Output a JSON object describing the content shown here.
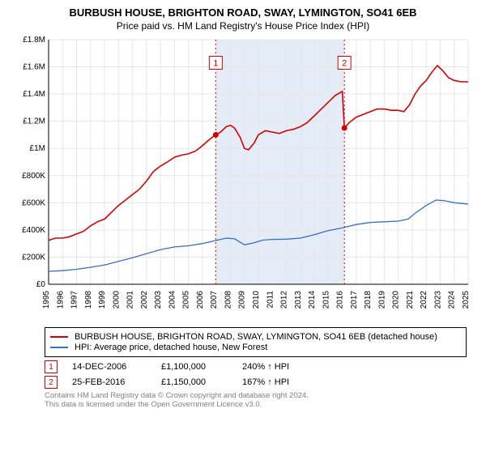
{
  "chart": {
    "type": "line",
    "title": "BURBUSH HOUSE, BRIGHTON ROAD, SWAY, LYMINGTON, SO41 6EB",
    "subtitle": "Price paid vs. HM Land Registry's House Price Index (HPI)",
    "background_color": "#ffffff",
    "plot_background": "#ffffff",
    "shade_color": "#e3ecf7",
    "grid_color": "#e6e6e6",
    "axis_color": "#000000",
    "title_fontsize": 13,
    "subtitle_fontsize": 12,
    "axis_label_fontsize": 10,
    "x": {
      "min": 1995,
      "max": 2025,
      "ticks": [
        1995,
        1996,
        1997,
        1998,
        1999,
        2000,
        2001,
        2002,
        2003,
        2004,
        2005,
        2006,
        2007,
        2008,
        2009,
        2010,
        2011,
        2012,
        2013,
        2014,
        2015,
        2016,
        2017,
        2018,
        2019,
        2020,
        2021,
        2022,
        2023,
        2024,
        2025
      ]
    },
    "y": {
      "min": 0,
      "max": 1800000,
      "ticks": [
        0,
        200000,
        400000,
        600000,
        800000,
        1000000,
        1200000,
        1400000,
        1600000,
        1800000
      ],
      "tick_labels": [
        "£0",
        "£200K",
        "£400K",
        "£600K",
        "£800K",
        "£1M",
        "£1.2M",
        "£1.4M",
        "£1.6M",
        "£1.8M"
      ]
    },
    "series": [
      {
        "name": "BURBUSH HOUSE, BRIGHTON ROAD, SWAY, LYMINGTON, SO41 6EB (detached house)",
        "color": "#d60000",
        "line_width": 1.6,
        "data": [
          [
            1995.0,
            323000
          ],
          [
            1995.5,
            340000
          ],
          [
            1996.0,
            340000
          ],
          [
            1996.5,
            350000
          ],
          [
            1997.0,
            370000
          ],
          [
            1997.5,
            390000
          ],
          [
            1998.0,
            430000
          ],
          [
            1998.5,
            460000
          ],
          [
            1999.0,
            480000
          ],
          [
            1999.5,
            530000
          ],
          [
            2000.0,
            580000
          ],
          [
            2000.5,
            620000
          ],
          [
            2001.0,
            660000
          ],
          [
            2001.5,
            700000
          ],
          [
            2002.0,
            760000
          ],
          [
            2002.5,
            830000
          ],
          [
            2003.0,
            870000
          ],
          [
            2003.5,
            900000
          ],
          [
            2004.0,
            935000
          ],
          [
            2004.5,
            950000
          ],
          [
            2005.0,
            960000
          ],
          [
            2005.5,
            980000
          ],
          [
            2006.0,
            1020000
          ],
          [
            2006.5,
            1065000
          ],
          [
            2006.95,
            1100000
          ],
          [
            2007.3,
            1120000
          ],
          [
            2007.7,
            1160000
          ],
          [
            2008.0,
            1170000
          ],
          [
            2008.3,
            1150000
          ],
          [
            2008.7,
            1080000
          ],
          [
            2009.0,
            1000000
          ],
          [
            2009.3,
            990000
          ],
          [
            2009.7,
            1040000
          ],
          [
            2010.0,
            1100000
          ],
          [
            2010.5,
            1130000
          ],
          [
            2011.0,
            1120000
          ],
          [
            2011.5,
            1110000
          ],
          [
            2012.0,
            1130000
          ],
          [
            2012.5,
            1140000
          ],
          [
            2013.0,
            1160000
          ],
          [
            2013.5,
            1190000
          ],
          [
            2014.0,
            1240000
          ],
          [
            2014.5,
            1290000
          ],
          [
            2015.0,
            1340000
          ],
          [
            2015.5,
            1390000
          ],
          [
            2016.0,
            1420000
          ],
          [
            2016.15,
            1150000
          ],
          [
            2016.5,
            1190000
          ],
          [
            2017.0,
            1230000
          ],
          [
            2017.5,
            1250000
          ],
          [
            2018.0,
            1270000
          ],
          [
            2018.5,
            1290000
          ],
          [
            2019.0,
            1290000
          ],
          [
            2019.5,
            1280000
          ],
          [
            2020.0,
            1280000
          ],
          [
            2020.4,
            1270000
          ],
          [
            2020.8,
            1320000
          ],
          [
            2021.2,
            1400000
          ],
          [
            2021.6,
            1460000
          ],
          [
            2022.0,
            1500000
          ],
          [
            2022.4,
            1560000
          ],
          [
            2022.8,
            1610000
          ],
          [
            2023.2,
            1570000
          ],
          [
            2023.6,
            1520000
          ],
          [
            2024.0,
            1500000
          ],
          [
            2024.5,
            1490000
          ],
          [
            2025.0,
            1490000
          ]
        ]
      },
      {
        "name": "HPI: Average price, detached house, New Forest",
        "color": "#3a6fbf",
        "line_width": 1.3,
        "data": [
          [
            1995.0,
            95000
          ],
          [
            1996.0,
            100000
          ],
          [
            1997.0,
            110000
          ],
          [
            1998.0,
            125000
          ],
          [
            1999.0,
            142000
          ],
          [
            2000.0,
            168000
          ],
          [
            2001.0,
            195000
          ],
          [
            2002.0,
            225000
          ],
          [
            2003.0,
            255000
          ],
          [
            2004.0,
            275000
          ],
          [
            2005.0,
            283000
          ],
          [
            2006.0,
            300000
          ],
          [
            2007.0,
            323000
          ],
          [
            2007.7,
            340000
          ],
          [
            2008.3,
            335000
          ],
          [
            2009.0,
            290000
          ],
          [
            2009.7,
            305000
          ],
          [
            2010.3,
            325000
          ],
          [
            2011.0,
            330000
          ],
          [
            2012.0,
            332000
          ],
          [
            2013.0,
            340000
          ],
          [
            2014.0,
            365000
          ],
          [
            2015.0,
            395000
          ],
          [
            2016.0,
            415000
          ],
          [
            2017.0,
            440000
          ],
          [
            2018.0,
            455000
          ],
          [
            2019.0,
            460000
          ],
          [
            2020.0,
            465000
          ],
          [
            2020.7,
            480000
          ],
          [
            2021.3,
            530000
          ],
          [
            2022.0,
            580000
          ],
          [
            2022.7,
            620000
          ],
          [
            2023.3,
            615000
          ],
          [
            2024.0,
            600000
          ],
          [
            2024.5,
            595000
          ],
          [
            2025.0,
            590000
          ]
        ]
      }
    ],
    "shade_range": [
      2006.95,
      2016.15
    ],
    "markers": [
      {
        "n": "1",
        "x": 2006.95,
        "y": 1100000,
        "date": "14-DEC-2006",
        "price": "£1,100,000",
        "delta": "240% ↑ HPI",
        "color": "#d60000",
        "label_y": 1630000
      },
      {
        "n": "2",
        "x": 2016.15,
        "y": 1150000,
        "date": "25-FEB-2016",
        "price": "£1,150,000",
        "delta": "167% ↑ HPI",
        "color": "#d60000",
        "label_y": 1630000
      }
    ],
    "shade_label_offset": 0
  },
  "legend": {
    "items": [
      {
        "color": "#d60000",
        "text": "BURBUSH HOUSE, BRIGHTON ROAD, SWAY, LYMINGTON, SO41 6EB (detached house)"
      },
      {
        "color": "#3a6fbf",
        "text": "HPI: Average price, detached house, New Forest"
      }
    ]
  },
  "footer": {
    "line1": "Contains HM Land Registry data © Crown copyright and database right 2024.",
    "line2": "This data is licensed under the Open Government Licence v3.0."
  }
}
